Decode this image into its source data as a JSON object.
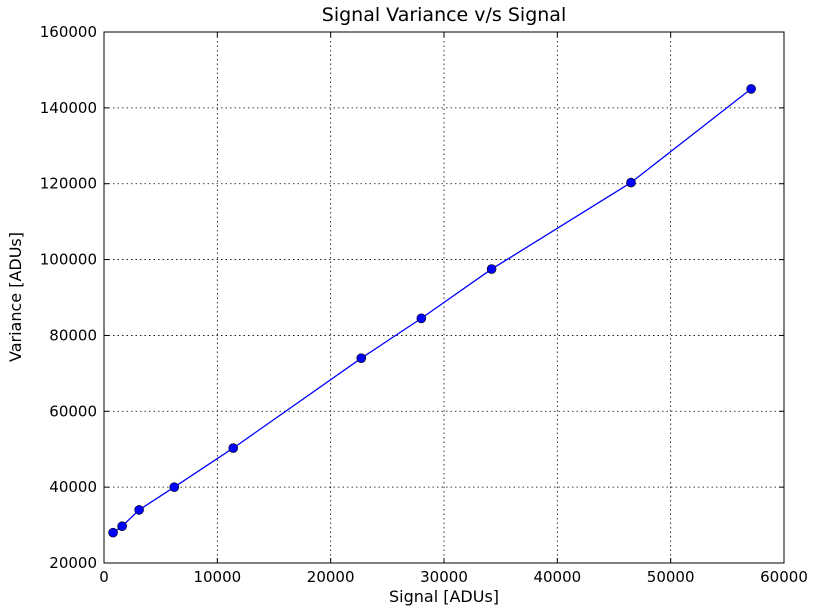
{
  "chart_data": {
    "type": "line",
    "title": "Signal Variance v/s Signal",
    "xlabel": "Signal [ADUs]",
    "ylabel": "Variance [ADUs]",
    "xlim": [
      0,
      60000
    ],
    "ylim": [
      20000,
      160000
    ],
    "x_ticks": [
      0,
      10000,
      20000,
      30000,
      40000,
      50000,
      60000
    ],
    "y_ticks": [
      20000,
      40000,
      60000,
      80000,
      100000,
      120000,
      140000,
      160000
    ],
    "grid": true,
    "series": [
      {
        "color": "#0000ff",
        "marker": "circle",
        "x": [
          800,
          1600,
          3100,
          6200,
          11400,
          22700,
          28000,
          34200,
          46500,
          57100
        ],
        "y": [
          28000,
          29700,
          34000,
          40000,
          50300,
          74000,
          84500,
          97500,
          120300,
          145000
        ]
      }
    ]
  }
}
